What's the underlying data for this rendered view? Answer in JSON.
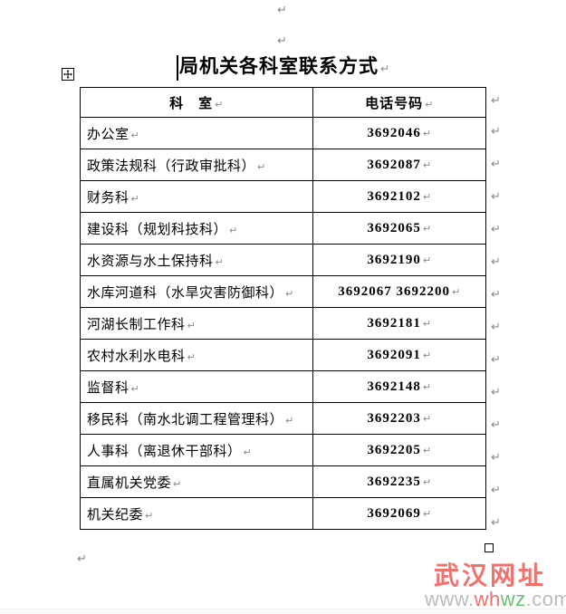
{
  "document": {
    "pilcrow_mark": "↵",
    "title": "局机关各科室联系方式"
  },
  "table": {
    "headers": {
      "department": "科　室",
      "phone": "电话号码"
    },
    "rows": [
      {
        "department": "办公室",
        "phone": "3692046"
      },
      {
        "department": "政策法规科（行政审批科）",
        "phone": "3692087"
      },
      {
        "department": "财务科",
        "phone": "3692102"
      },
      {
        "department": "建设科（规划科技科）",
        "phone": "3692065"
      },
      {
        "department": "水资源与水土保持科",
        "phone": "3692190"
      },
      {
        "department": "水库河道科（水旱灾害防御科）",
        "phone": "3692067 3692200"
      },
      {
        "department": "河湖长制工作科",
        "phone": "3692181"
      },
      {
        "department": "农村水利水电科",
        "phone": "3692091"
      },
      {
        "department": "监督科",
        "phone": "3692148"
      },
      {
        "department": "移民科（南水北调工程管理科）",
        "phone": "3692203"
      },
      {
        "department": "人事科（离退休干部科）",
        "phone": "3692205"
      },
      {
        "department": "直属机关党委",
        "phone": "3692235"
      },
      {
        "department": "机关纪委",
        "phone": "3692069"
      }
    ]
  },
  "watermark": {
    "brand_text": "武汉网址",
    "brand_color": "#f3716d",
    "url_segments": [
      {
        "text": "www.",
        "color": "#b9bcbc"
      },
      {
        "text": "wh",
        "color": "#f3716d"
      },
      {
        "text": "wz",
        "color": "#6abf73"
      },
      {
        "text": ".com",
        "color": "#b9bcbc"
      }
    ]
  },
  "colors": {
    "border": "#000000",
    "text": "#000000",
    "formatting_mark_gray": "#8a8a8a"
  }
}
